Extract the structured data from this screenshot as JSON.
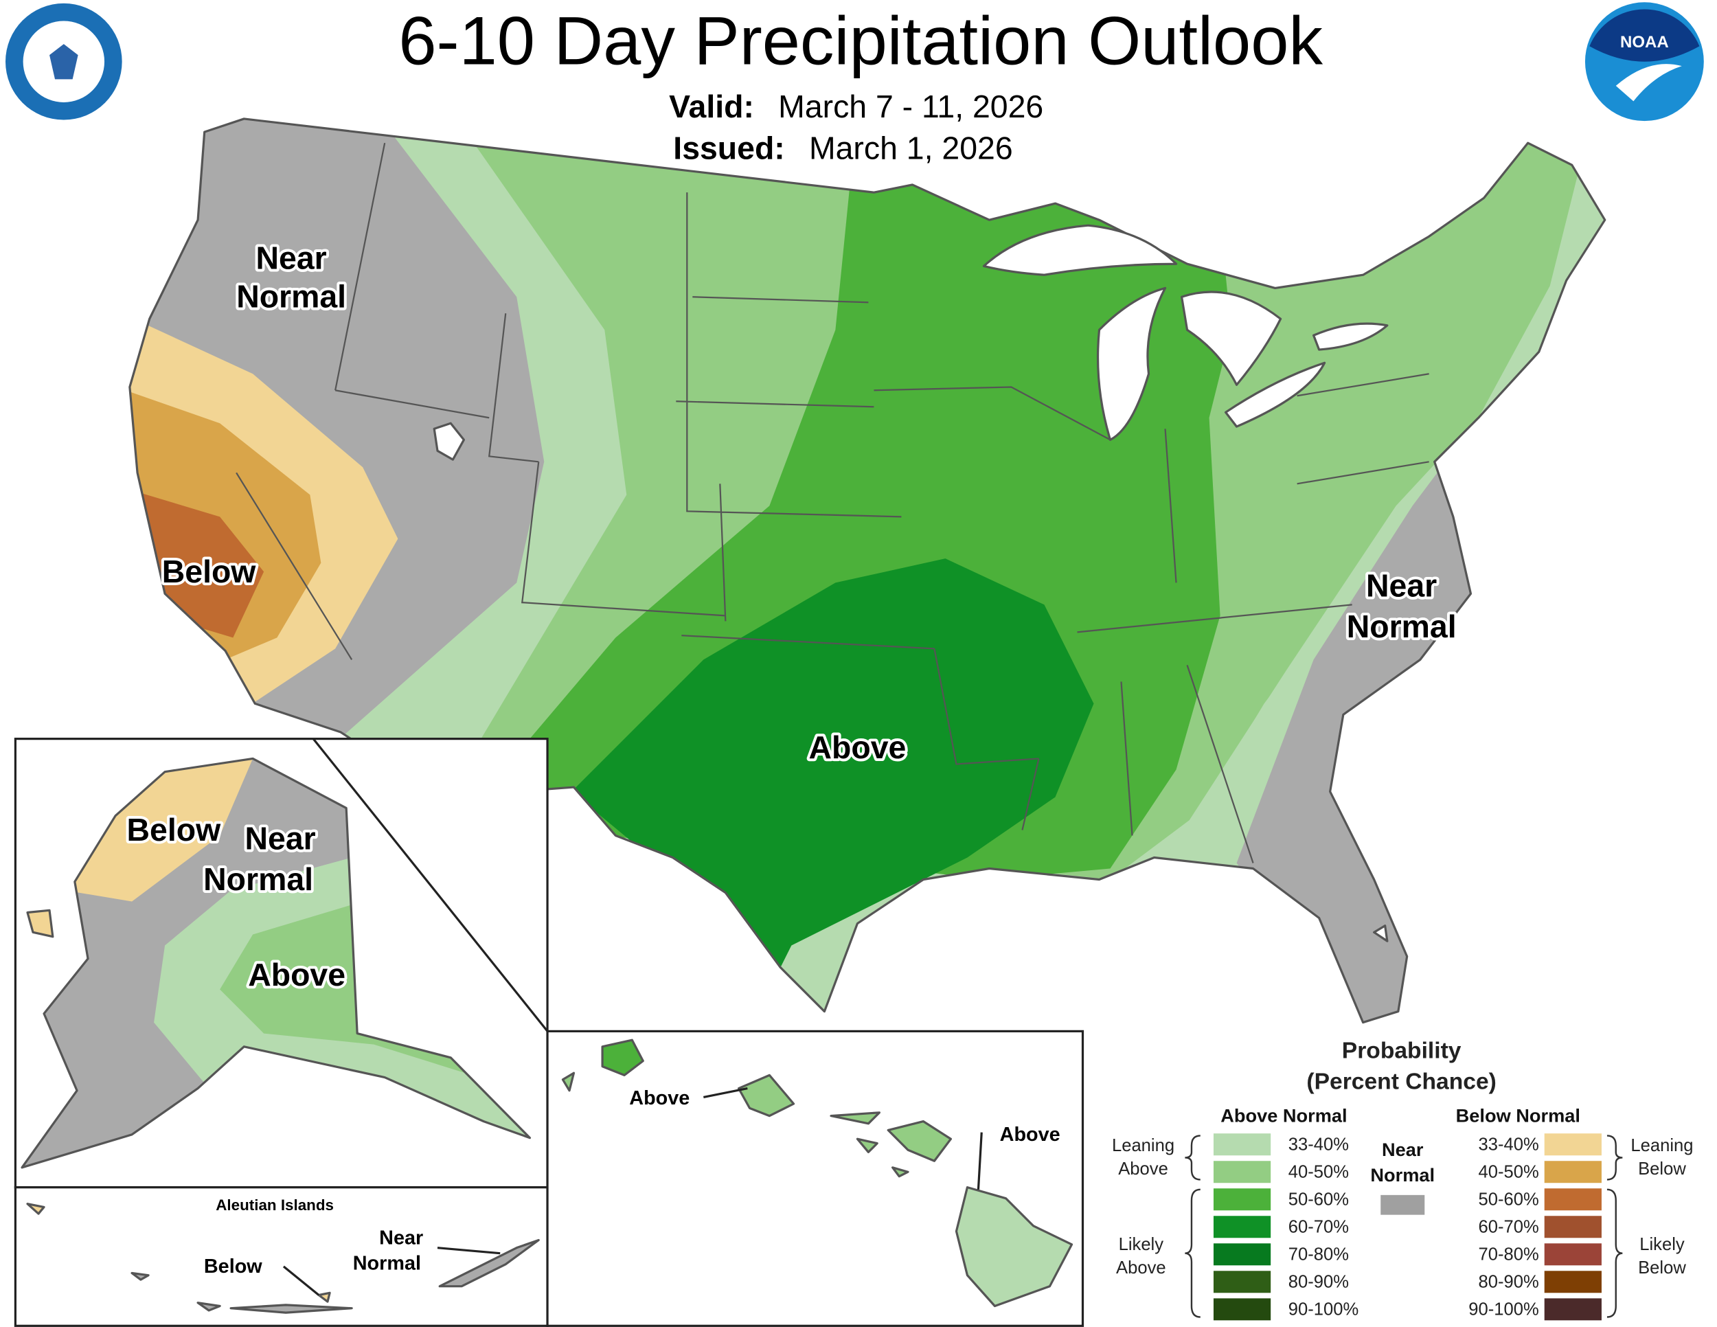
{
  "header": {
    "title": "6-10 Day Precipitation Outlook",
    "valid_label": "Valid:",
    "valid": "March 7 - 11, 2026",
    "issued_label": "Issued:",
    "issued": "March 1, 2026",
    "noaa": "NOAA"
  },
  "conus_labels": [
    [
      "Near",
      "Normal"
    ],
    [
      "Below"
    ],
    [
      "Above"
    ],
    [
      "Near",
      "Normal"
    ]
  ],
  "alaska_labels": [
    [
      "Below"
    ],
    [
      "Near",
      "Normal"
    ],
    [
      "Above"
    ]
  ],
  "aleutian": {
    "title": "Aleutian Islands",
    "labels": [
      [
        "Near",
        "Normal"
      ],
      [
        "Below"
      ]
    ]
  },
  "hawaii_labels": [
    [
      "Above"
    ],
    [
      "Above"
    ]
  ],
  "legend": {
    "title": [
      "Probability",
      "(Percent Chance)"
    ],
    "above_header": "Above Normal",
    "below_header": "Below Normal",
    "near": [
      "Near",
      "Normal"
    ],
    "near_color": "#a0a0a0",
    "leaning_above": [
      "Leaning",
      "Above"
    ],
    "likely_above": [
      "Likely",
      "Above"
    ],
    "leaning_below": [
      "Leaning",
      "Below"
    ],
    "likely_below": [
      "Likely",
      "Below"
    ],
    "above_bins": [
      {
        "label": "33-40%",
        "color": "#b5dbaf"
      },
      {
        "label": "40-50%",
        "color": "#93cd83"
      },
      {
        "label": "50-60%",
        "color": "#4cb13a"
      },
      {
        "label": "60-70%",
        "color": "#0f9126"
      },
      {
        "label": "70-80%",
        "color": "#077a1f"
      },
      {
        "label": "80-90%",
        "color": "#2f5e16"
      },
      {
        "label": "90-100%",
        "color": "#244a0f"
      }
    ],
    "below_bins": [
      {
        "label": "33-40%",
        "color": "#f2d594"
      },
      {
        "label": "40-50%",
        "color": "#d9a54a"
      },
      {
        "label": "50-60%",
        "color": "#c06b30"
      },
      {
        "label": "60-70%",
        "color": "#a0512e"
      },
      {
        "label": "70-80%",
        "color": "#9b4438"
      },
      {
        "label": "80-90%",
        "color": "#7e3f04"
      },
      {
        "label": "90-100%",
        "color": "#4b2a2a"
      }
    ]
  }
}
